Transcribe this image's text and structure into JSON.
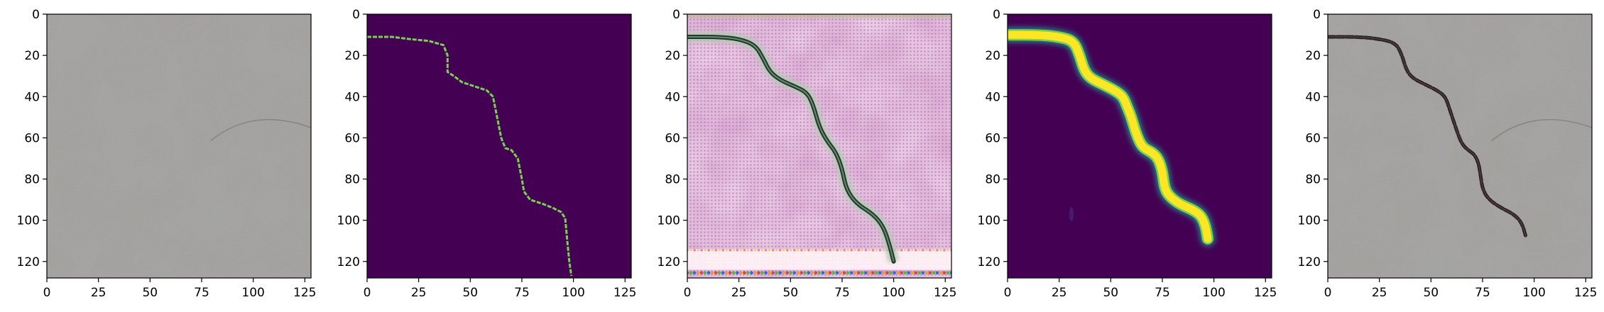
{
  "colors": {
    "background": "#ffffff",
    "frame": "#000000",
    "viridis_low": "#440154",
    "viridis_high": "#fde725",
    "viridis_mid": "#21918c",
    "concrete_gray": "#9a9894",
    "crack_dark": "#1e2420"
  },
  "chart_data": [
    {
      "type": "heatmap",
      "content": "concrete-surface-photo",
      "xlim": [
        0,
        128
      ],
      "ylim": [
        128,
        0
      ],
      "x_ticks": [
        "0",
        "25",
        "50",
        "75",
        "100",
        "125"
      ],
      "y_ticks": [
        "0",
        "20",
        "40",
        "60",
        "80",
        "100",
        "120"
      ]
    },
    {
      "type": "heatmap",
      "content": "binary-crack-mask",
      "colormap": "viridis",
      "xlim": [
        0,
        128
      ],
      "ylim": [
        128,
        0
      ],
      "x_ticks": [
        "0",
        "25",
        "50",
        "75",
        "100",
        "125"
      ],
      "y_ticks": [
        "0",
        "20",
        "40",
        "60",
        "80",
        "100",
        "120"
      ],
      "crack_path": [
        [
          0,
          11
        ],
        [
          12,
          11
        ],
        [
          20,
          12
        ],
        [
          30,
          13
        ],
        [
          37,
          15
        ],
        [
          39,
          20
        ],
        [
          39,
          28
        ],
        [
          42,
          30
        ],
        [
          46,
          33
        ],
        [
          52,
          35
        ],
        [
          58,
          37
        ],
        [
          61,
          40
        ],
        [
          63,
          50
        ],
        [
          65,
          60
        ],
        [
          67,
          65
        ],
        [
          70,
          66
        ],
        [
          73,
          70
        ],
        [
          74,
          75
        ],
        [
          75,
          80
        ],
        [
          76,
          86
        ],
        [
          79,
          90
        ],
        [
          85,
          92
        ],
        [
          90,
          94
        ],
        [
          94,
          96
        ],
        [
          96,
          99
        ],
        [
          97,
          110
        ],
        [
          98,
          120
        ],
        [
          99,
          127
        ]
      ]
    },
    {
      "type": "heatmap",
      "content": "generated-texture-with-crack",
      "xlim": [
        0,
        128
      ],
      "ylim": [
        128,
        0
      ],
      "x_ticks": [
        "0",
        "25",
        "50",
        "75",
        "100",
        "125"
      ],
      "y_ticks": [
        "0",
        "20",
        "40",
        "60",
        "80",
        "100",
        "120"
      ],
      "crack_path": [
        [
          0,
          11
        ],
        [
          15,
          11
        ],
        [
          25,
          12
        ],
        [
          33,
          15
        ],
        [
          37,
          22
        ],
        [
          40,
          28
        ],
        [
          45,
          32
        ],
        [
          52,
          35
        ],
        [
          58,
          38
        ],
        [
          61,
          44
        ],
        [
          64,
          55
        ],
        [
          68,
          62
        ],
        [
          72,
          67
        ],
        [
          75,
          75
        ],
        [
          77,
          85
        ],
        [
          82,
          92
        ],
        [
          90,
          97
        ],
        [
          95,
          103
        ],
        [
          98,
          112
        ],
        [
          100,
          120
        ]
      ]
    },
    {
      "type": "heatmap",
      "content": "predicted-crack-mask",
      "colormap": "viridis",
      "xlim": [
        0,
        128
      ],
      "ylim": [
        128,
        0
      ],
      "x_ticks": [
        "0",
        "25",
        "50",
        "75",
        "100",
        "125"
      ],
      "y_ticks": [
        "0",
        "20",
        "40",
        "60",
        "80",
        "100",
        "120"
      ],
      "crack_path": [
        [
          0,
          10
        ],
        [
          15,
          10
        ],
        [
          25,
          11
        ],
        [
          32,
          13
        ],
        [
          35,
          20
        ],
        [
          37,
          27
        ],
        [
          40,
          31
        ],
        [
          46,
          34
        ],
        [
          52,
          37
        ],
        [
          56,
          40
        ],
        [
          58,
          45
        ],
        [
          60,
          50
        ],
        [
          62,
          57
        ],
        [
          64,
          62
        ],
        [
          66,
          65
        ],
        [
          70,
          67
        ],
        [
          73,
          70
        ],
        [
          75,
          76
        ],
        [
          76,
          84
        ],
        [
          78,
          88
        ],
        [
          83,
          92
        ],
        [
          90,
          95
        ],
        [
          94,
          98
        ],
        [
          96,
          103
        ],
        [
          97,
          109
        ]
      ]
    },
    {
      "type": "heatmap",
      "content": "photo-with-predicted-crack-overlay",
      "xlim": [
        0,
        128
      ],
      "ylim": [
        128,
        0
      ],
      "x_ticks": [
        "0",
        "25",
        "50",
        "75",
        "100",
        "125"
      ],
      "y_ticks": [
        "0",
        "20",
        "40",
        "60",
        "80",
        "100",
        "120"
      ],
      "crack_path": [
        [
          0,
          11
        ],
        [
          15,
          11
        ],
        [
          25,
          12
        ],
        [
          33,
          14
        ],
        [
          36,
          20
        ],
        [
          38,
          27
        ],
        [
          41,
          31
        ],
        [
          47,
          34
        ],
        [
          53,
          37
        ],
        [
          57,
          40
        ],
        [
          59,
          46
        ],
        [
          61,
          52
        ],
        [
          63,
          58
        ],
        [
          65,
          63
        ],
        [
          68,
          66
        ],
        [
          71,
          68
        ],
        [
          73,
          72
        ],
        [
          74,
          78
        ],
        [
          75,
          85
        ],
        [
          78,
          90
        ],
        [
          84,
          94
        ],
        [
          90,
          97
        ],
        [
          94,
          101
        ],
        [
          96,
          108
        ]
      ]
    }
  ]
}
